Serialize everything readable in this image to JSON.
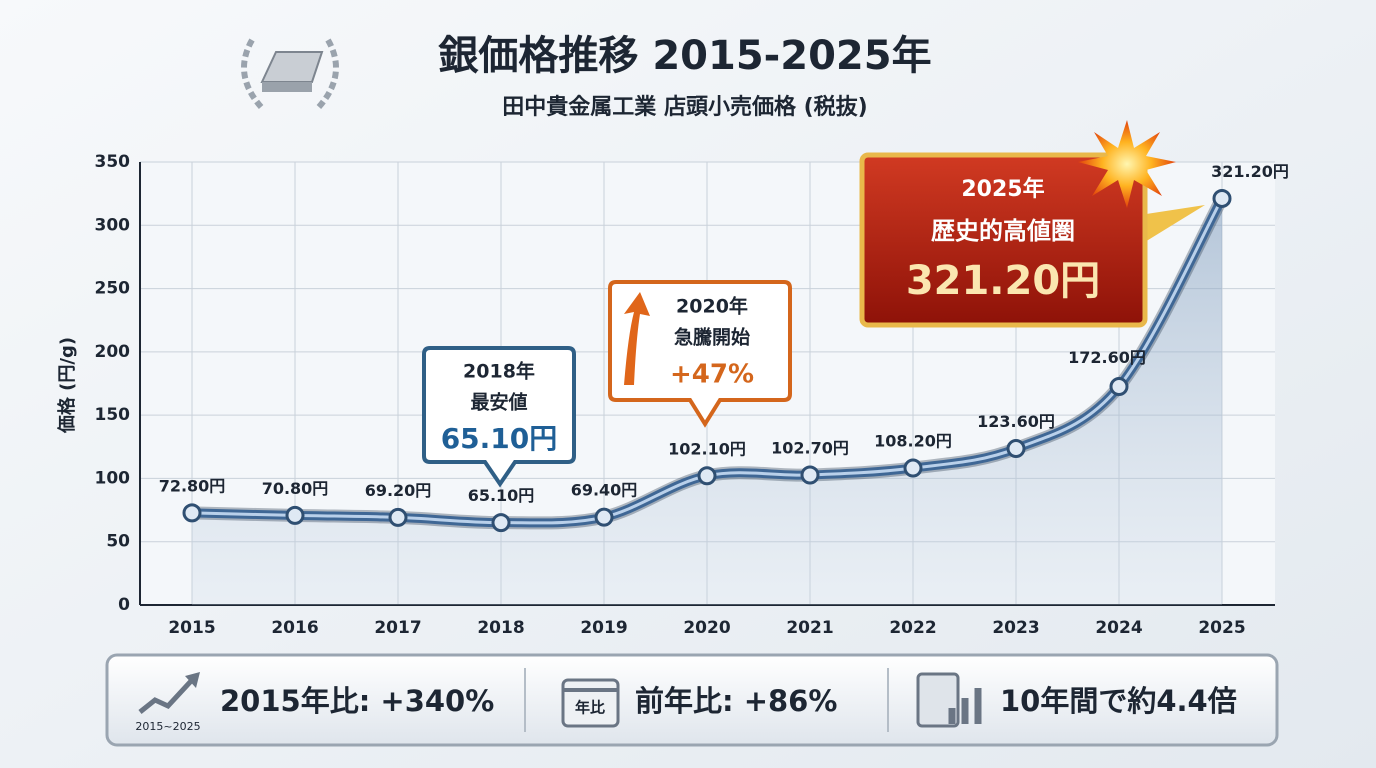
{
  "chart_data": {
    "type": "line",
    "title": "銀価格推移 2015-2025年",
    "subtitle": "田中貴金属工業 店頭小売価格 (税抜)",
    "y_label": "価格 (円/g)",
    "categories": [
      "2015",
      "2016",
      "2017",
      "2018",
      "2019",
      "2020",
      "2021",
      "2022",
      "2023",
      "2024",
      "2025"
    ],
    "values": [
      72.8,
      70.8,
      69.2,
      65.1,
      69.4,
      102.1,
      102.7,
      108.2,
      123.6,
      172.6,
      321.2
    ],
    "value_labels": [
      "72.80円",
      "70.80円",
      "69.20円",
      "65.10円",
      "69.40円",
      "102.10円",
      "102.70円",
      "108.20円",
      "123.60円",
      "172.60円",
      "321.20円"
    ],
    "color": "#3f6795",
    "ylim": [
      0,
      350
    ],
    "yticks": [
      0,
      50,
      100,
      150,
      200,
      250,
      300,
      350
    ],
    "grid": true,
    "annotations": [
      {
        "lines": [
          "2018年",
          "最安値",
          "65.10円"
        ]
      },
      {
        "lines": [
          "2020年",
          "急騰開始",
          "+47%"
        ]
      },
      {
        "lines": [
          "2025年",
          "歴史的高値圏",
          "321.20円"
        ]
      }
    ],
    "summary": [
      {
        "icon_text": "2015~2025",
        "text": "2015年比: +340%"
      },
      {
        "icon_text": "年比",
        "text": "前年比: +86%"
      },
      {
        "text": "10年間で約4.4倍"
      }
    ]
  }
}
